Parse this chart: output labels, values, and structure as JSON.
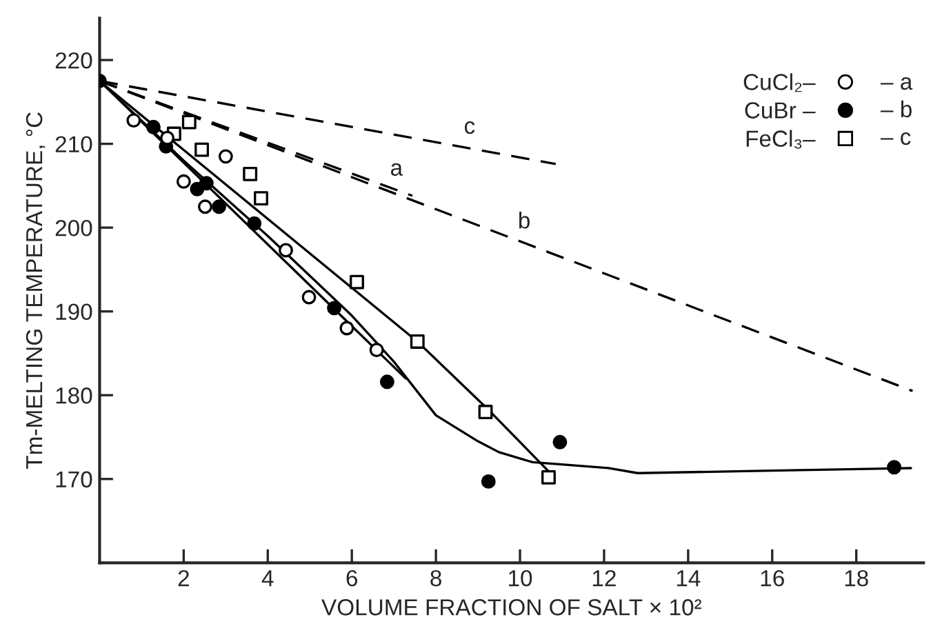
{
  "chart_data": {
    "type": "scatter",
    "xlabel": "VOLUME FRACTION OF SALT × 10²",
    "ylabel": "Tm-MELTING TEMPERATURE, °C",
    "xlim": [
      0,
      19.6
    ],
    "ylim": [
      160,
      225
    ],
    "xticks": [
      2,
      4,
      6,
      8,
      10,
      12,
      14,
      16,
      18
    ],
    "yticks": [
      170,
      180,
      190,
      200,
      210,
      220
    ],
    "grid": false,
    "legend": "top right",
    "series": [
      {
        "name": "CuCl₂–",
        "marker": "circle",
        "color": "#ffffff",
        "x": [
          0.81,
          1.61,
          2.0,
          2.51,
          3.0,
          4.43,
          4.98,
          5.88,
          6.59
        ],
        "values": [
          212.8,
          210.7,
          205.5,
          202.5,
          208.5,
          197.3,
          191.7,
          188.0,
          185.4
        ]
      },
      {
        "name": "CuBr –",
        "marker": "circle",
        "color": "#000000",
        "x": [
          0,
          1.28,
          1.58,
          2.32,
          2.54,
          2.84,
          3.68,
          5.58,
          6.84,
          9.25,
          10.95,
          18.9
        ],
        "values": [
          217.5,
          212.0,
          209.7,
          204.6,
          205.3,
          202.5,
          200.5,
          190.4,
          181.6,
          169.7,
          174.4,
          171.4
        ]
      },
      {
        "name": "FeCl₃–",
        "marker": "square",
        "color": "#ffffff",
        "x": [
          1.77,
          2.13,
          2.43,
          3.58,
          3.84,
          6.12,
          7.56,
          9.18,
          10.68
        ],
        "values": [
          211.2,
          212.6,
          209.3,
          206.4,
          203.5,
          193.5,
          186.4,
          178.0,
          170.2
        ]
      },
      {
        "type": "line",
        "line_style": "solid",
        "color": "#000000",
        "x": [
          0,
          7.28
        ],
        "values": [
          217.5,
          182.0
        ]
      },
      {
        "type": "line",
        "line_style": "solid",
        "color": "#000000",
        "x": [
          0,
          2,
          4,
          6,
          7,
          8,
          9,
          9.5,
          10.3,
          12.1,
          12.8,
          16,
          19.3
        ],
        "values": [
          217.5,
          208,
          199,
          189.5,
          184,
          177.6,
          174.5,
          173.2,
          172,
          171.3,
          170.7,
          171,
          171.3
        ]
      },
      {
        "type": "line",
        "line_style": "solid",
        "color": "#000000",
        "x": [
          0,
          7.56,
          9.2,
          10.8
        ],
        "values": [
          217.5,
          186.4,
          178.5,
          170.3
        ]
      },
      {
        "type": "line",
        "line_style": "dashed",
        "color": "#000000",
        "x": [
          0,
          7.44
        ],
        "values": [
          217.5,
          203.8
        ]
      },
      {
        "type": "line",
        "line_style": "dashed",
        "color": "#000000",
        "x": [
          0,
          19.34
        ],
        "values": [
          217.5,
          180.5
        ]
      },
      {
        "type": "line",
        "line_style": "dashed",
        "color": "#000000",
        "x": [
          0,
          10.85
        ],
        "values": [
          217.5,
          207.6
        ]
      }
    ],
    "annotations": [
      {
        "text": "a",
        "x": 7.06,
        "y": 204.5
      },
      {
        "text": "b",
        "x": 10.1,
        "y": 198.2
      },
      {
        "text": "c",
        "x": 8.8,
        "y": 209.5
      },
      "– a",
      "– b",
      "– c"
    ]
  }
}
